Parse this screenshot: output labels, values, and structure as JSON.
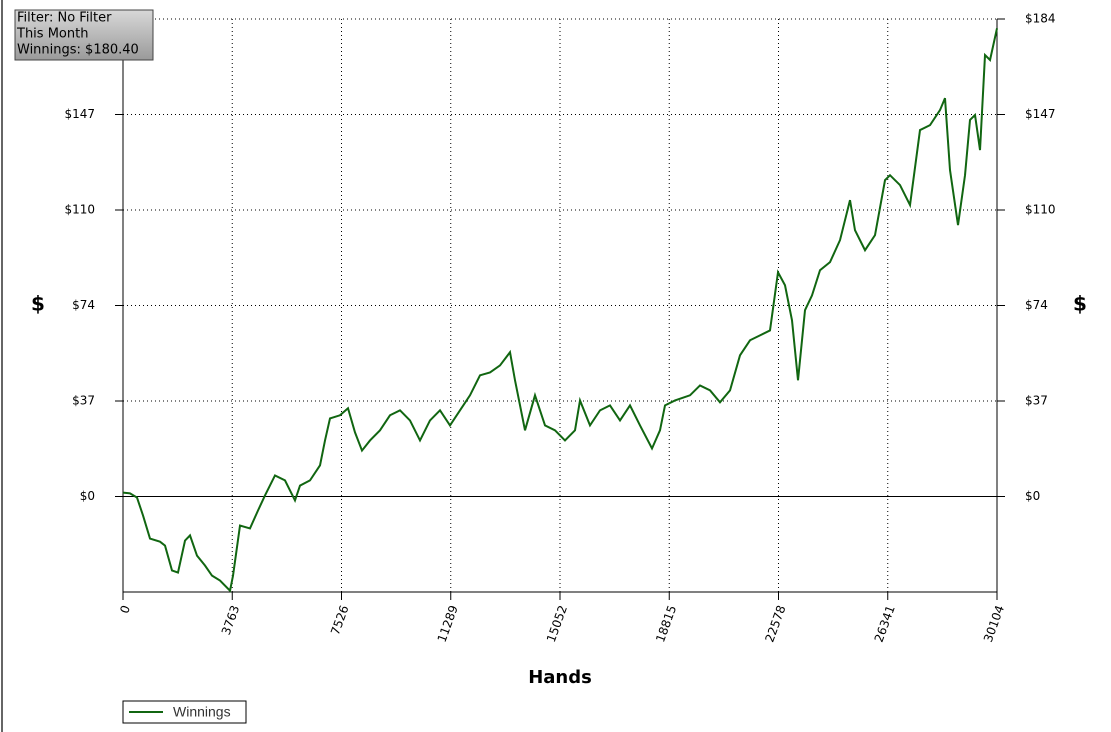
{
  "info": {
    "filter": "Filter: No Filter",
    "period": "This Month",
    "winnings": "Winnings: $180.40"
  },
  "chart_data": {
    "type": "line",
    "xlabel": "Hands",
    "ylabel": "$",
    "y2label": "$",
    "xlim": [
      0,
      30104
    ],
    "ylim": [
      -36.8,
      184
    ],
    "grid": true,
    "legend": "bottom-left",
    "xticks": [
      0,
      3763,
      7526,
      11289,
      15052,
      18815,
      22578,
      26341,
      30104
    ],
    "yticks": [
      {
        "value": 0,
        "label": "$0"
      },
      {
        "value": 36.8,
        "label": "$37"
      },
      {
        "value": 73.6,
        "label": "$74"
      },
      {
        "value": 110.4,
        "label": "$110"
      },
      {
        "value": 147.2,
        "label": "$147"
      },
      {
        "value": 184,
        "label": "$184"
      }
    ],
    "x": [
      0,
      241,
      482,
      689,
      930,
      1274,
      1447,
      1688,
      1894,
      2136,
      2308,
      2549,
      2824,
      3066,
      3341,
      3686,
      3789,
      4030,
      4374,
      4650,
      4891,
      5235,
      5580,
      5924,
      6097,
      6441,
      6786,
      6958,
      7130,
      7474,
      7750,
      7991,
      8232,
      8508,
      8852,
      9196,
      9541,
      9885,
      10230,
      10574,
      10919,
      11263,
      11608,
      11952,
      12297,
      12641,
      12985,
      13330,
      13502,
      13847,
      14191,
      14536,
      14880,
      15224,
      15569,
      15741,
      16085,
      16430,
      16774,
      17119,
      17463,
      17808,
      18221,
      18496,
      18669,
      19013,
      19530,
      19874,
      20219,
      20563,
      20908,
      21252,
      21597,
      21941,
      22285,
      22561,
      22802,
      23043,
      23250,
      23491,
      23732,
      24008,
      24352,
      24697,
      25041,
      25213,
      25558,
      25902,
      26247,
      26419,
      26763,
      27108,
      27452,
      27797,
      28141,
      28313,
      28485,
      28761,
      29002,
      29174,
      29347,
      29519,
      29691,
      29864,
      30104
    ],
    "series": [
      {
        "name": "Winnings",
        "color": "#116611",
        "values": [
          1.5,
          1.2,
          -0.4,
          -7.3,
          -16.2,
          -17.4,
          -18.9,
          -28.5,
          -29.3,
          -17.0,
          -15.0,
          -22.8,
          -26.6,
          -30.5,
          -32.4,
          -36.3,
          -30.5,
          -11.2,
          -12.3,
          -5.4,
          0.4,
          8.1,
          6.2,
          -1.5,
          4.2,
          6.2,
          12.0,
          21.6,
          30.1,
          31.3,
          34.0,
          24.7,
          17.7,
          21.6,
          25.5,
          31.3,
          33.2,
          29.3,
          21.6,
          29.3,
          33.2,
          27.4,
          33.2,
          39.0,
          46.7,
          47.8,
          50.5,
          55.6,
          44.8,
          25.5,
          39.0,
          27.4,
          25.5,
          21.6,
          25.5,
          37.0,
          27.4,
          33.2,
          35.1,
          29.3,
          35.1,
          27.4,
          18.5,
          25.5,
          35.1,
          37.0,
          39.0,
          42.8,
          40.9,
          36.3,
          40.9,
          54.4,
          60.2,
          62.1,
          64.0,
          86.4,
          81.4,
          67.9,
          44.8,
          71.8,
          77.5,
          87.2,
          90.3,
          98.8,
          114.2,
          102.6,
          94.9,
          100.7,
          121.9,
          123.8,
          120.0,
          112.3,
          141.2,
          143.1,
          148.9,
          153.5,
          125.8,
          104.6,
          123.8,
          145.1,
          147.0,
          133.5,
          170.1,
          168.2,
          180.4
        ]
      }
    ]
  }
}
